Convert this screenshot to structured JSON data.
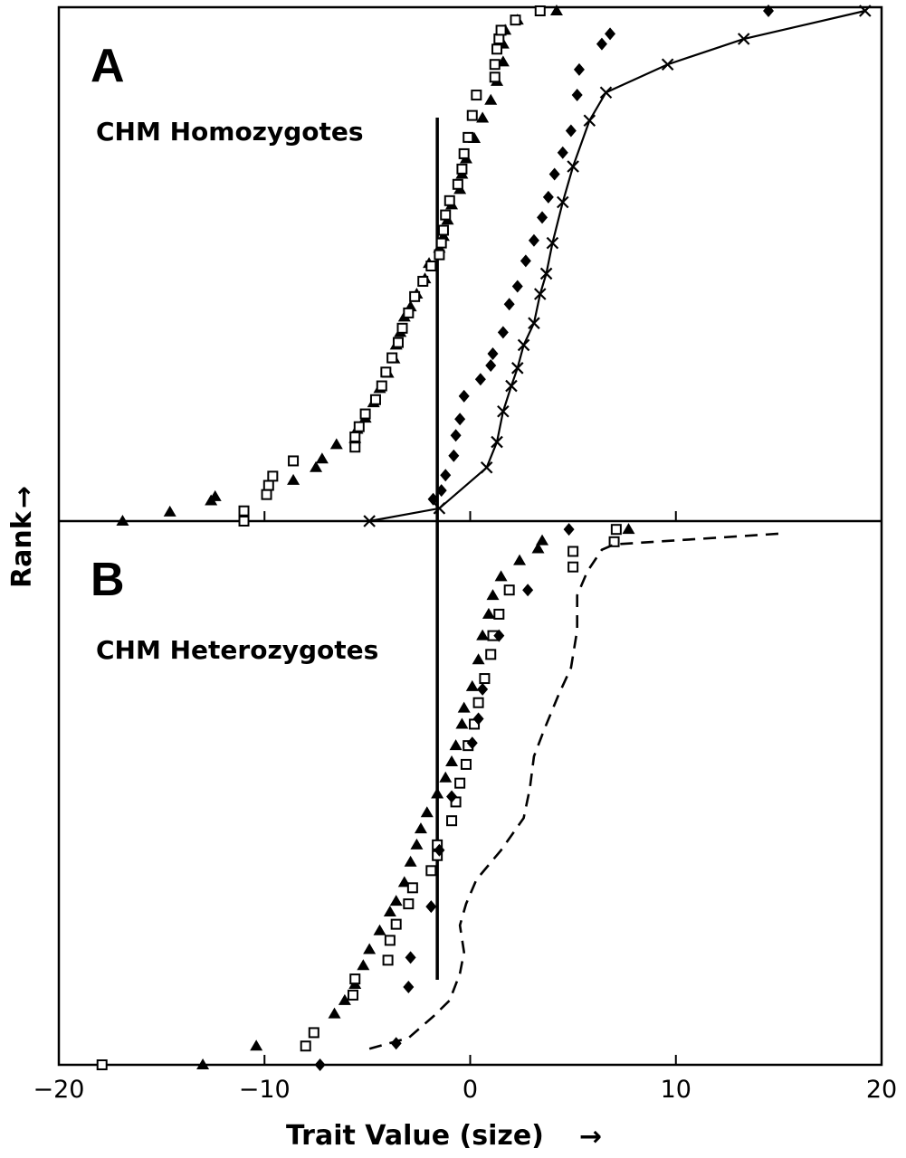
{
  "chart_data": {
    "type": "scatter",
    "xlabel": "Trait Value (size)",
    "ylabel": "Rank",
    "xlim": [
      -20,
      20
    ],
    "xticks": [
      "−20",
      "−10",
      "0",
      "10",
      "20"
    ],
    "xtick_values": [
      -20,
      -10,
      0,
      10,
      20
    ],
    "arrow_glyphs": {
      "x": "→",
      "y": "→"
    },
    "vertical_line_x": -1.6,
    "panels": [
      {
        "letter": "A",
        "title": "CHM Homozygotes",
        "series": [
          {
            "marker": "triangle",
            "points": [
              [
                -16.9,
                0.0
              ],
              [
                -14.6,
                0.018
              ],
              [
                -12.6,
                0.04
              ],
              [
                -12.4,
                0.048
              ],
              [
                -8.6,
                0.08
              ],
              [
                -7.5,
                0.105
              ],
              [
                -7.2,
                0.122
              ],
              [
                -6.5,
                0.15
              ],
              [
                -5.6,
                0.162
              ],
              [
                -5.5,
                0.18
              ],
              [
                -5.1,
                0.202
              ],
              [
                -4.7,
                0.232
              ],
              [
                -4.4,
                0.26
              ],
              [
                -4.0,
                0.29
              ],
              [
                -3.7,
                0.318
              ],
              [
                -3.6,
                0.345
              ],
              [
                -3.4,
                0.37
              ],
              [
                -3.2,
                0.4
              ],
              [
                -2.9,
                0.42
              ],
              [
                -2.6,
                0.445
              ],
              [
                -2.2,
                0.475
              ],
              [
                -2.0,
                0.505
              ],
              [
                -1.5,
                0.535
              ],
              [
                -1.3,
                0.558
              ],
              [
                -1.1,
                0.59
              ],
              [
                -0.9,
                0.62
              ],
              [
                -0.5,
                0.65
              ],
              [
                -0.4,
                0.68
              ],
              [
                -0.2,
                0.71
              ],
              [
                0.2,
                0.75
              ],
              [
                0.6,
                0.79
              ],
              [
                1.0,
                0.825
              ],
              [
                1.3,
                0.862
              ],
              [
                1.6,
                0.9
              ],
              [
                1.6,
                0.935
              ],
              [
                1.7,
                0.962
              ],
              [
                2.3,
                0.982
              ],
              [
                4.2,
                1.0
              ]
            ]
          },
          {
            "marker": "open-square",
            "points": [
              [
                -11.0,
                0.0
              ],
              [
                -11.0,
                0.02
              ],
              [
                -9.9,
                0.052
              ],
              [
                -9.8,
                0.07
              ],
              [
                -9.6,
                0.088
              ],
              [
                -8.6,
                0.118
              ],
              [
                -5.6,
                0.145
              ],
              [
                -5.6,
                0.165
              ],
              [
                -5.4,
                0.185
              ],
              [
                -5.1,
                0.21
              ],
              [
                -4.6,
                0.238
              ],
              [
                -4.3,
                0.265
              ],
              [
                -4.1,
                0.292
              ],
              [
                -3.8,
                0.32
              ],
              [
                -3.5,
                0.35
              ],
              [
                -3.3,
                0.378
              ],
              [
                -3.0,
                0.408
              ],
              [
                -2.7,
                0.44
              ],
              [
                -2.3,
                0.47
              ],
              [
                -1.9,
                0.5
              ],
              [
                -1.5,
                0.522
              ],
              [
                -1.4,
                0.545
              ],
              [
                -1.3,
                0.57
              ],
              [
                -1.2,
                0.6
              ],
              [
                -1.0,
                0.628
              ],
              [
                -0.6,
                0.66
              ],
              [
                -0.4,
                0.69
              ],
              [
                -0.3,
                0.72
              ],
              [
                -0.1,
                0.752
              ],
              [
                0.1,
                0.795
              ],
              [
                0.3,
                0.835
              ],
              [
                1.2,
                0.87
              ],
              [
                1.2,
                0.895
              ],
              [
                1.3,
                0.925
              ],
              [
                1.4,
                0.945
              ],
              [
                1.5,
                0.962
              ],
              [
                2.2,
                0.982
              ],
              [
                3.4,
                1.0
              ]
            ]
          },
          {
            "marker": "diamond",
            "points": [
              [
                -1.8,
                0.043
              ],
              [
                -1.4,
                0.06
              ],
              [
                -1.2,
                0.09
              ],
              [
                -0.8,
                0.128
              ],
              [
                -0.7,
                0.168
              ],
              [
                -0.5,
                0.2
              ],
              [
                -0.3,
                0.245
              ],
              [
                0.5,
                0.278
              ],
              [
                1.0,
                0.305
              ],
              [
                1.1,
                0.328
              ],
              [
                1.6,
                0.37
              ],
              [
                1.9,
                0.425
              ],
              [
                2.3,
                0.46
              ],
              [
                2.7,
                0.51
              ],
              [
                3.1,
                0.55
              ],
              [
                3.5,
                0.595
              ],
              [
                3.8,
                0.635
              ],
              [
                4.1,
                0.68
              ],
              [
                4.5,
                0.722
              ],
              [
                4.9,
                0.765
              ],
              [
                5.2,
                0.835
              ],
              [
                5.3,
                0.885
              ],
              [
                6.4,
                0.935
              ],
              [
                6.8,
                0.955
              ],
              [
                14.5,
                1.0
              ]
            ]
          },
          {
            "marker": "x-line",
            "points": [
              [
                -4.9,
                0.0
              ],
              [
                -1.5,
                0.025
              ],
              [
                0.8,
                0.105
              ],
              [
                1.3,
                0.155
              ],
              [
                1.6,
                0.215
              ],
              [
                2.0,
                0.265
              ],
              [
                2.3,
                0.3
              ],
              [
                2.6,
                0.345
              ],
              [
                3.1,
                0.388
              ],
              [
                3.4,
                0.445
              ],
              [
                3.7,
                0.485
              ],
              [
                4.0,
                0.545
              ],
              [
                4.5,
                0.625
              ],
              [
                5.0,
                0.695
              ],
              [
                5.8,
                0.785
              ],
              [
                6.6,
                0.84
              ],
              [
                9.6,
                0.895
              ],
              [
                13.3,
                0.945
              ],
              [
                19.2,
                1.0
              ]
            ]
          }
        ]
      },
      {
        "letter": "B",
        "title": "CHM Heterozygotes",
        "series": [
          {
            "marker": "triangle",
            "points": [
              [
                -13.0,
                0.0
              ],
              [
                -10.4,
                0.035
              ],
              [
                -6.6,
                0.095
              ],
              [
                -6.1,
                0.12
              ],
              [
                -5.6,
                0.15
              ],
              [
                -5.2,
                0.185
              ],
              [
                -4.9,
                0.215
              ],
              [
                -4.4,
                0.25
              ],
              [
                -3.9,
                0.285
              ],
              [
                -3.6,
                0.305
              ],
              [
                -3.2,
                0.34
              ],
              [
                -2.9,
                0.378
              ],
              [
                -2.6,
                0.41
              ],
              [
                -2.4,
                0.44
              ],
              [
                -2.1,
                0.47
              ],
              [
                -1.6,
                0.505
              ],
              [
                -1.2,
                0.535
              ],
              [
                -0.9,
                0.565
              ],
              [
                -0.7,
                0.595
              ],
              [
                -0.4,
                0.635
              ],
              [
                -0.3,
                0.665
              ],
              [
                0.1,
                0.705
              ],
              [
                0.4,
                0.755
              ],
              [
                0.6,
                0.8
              ],
              [
                0.9,
                0.84
              ],
              [
                1.1,
                0.875
              ],
              [
                1.5,
                0.91
              ],
              [
                2.4,
                0.94
              ],
              [
                3.3,
                0.962
              ],
              [
                3.5,
                0.977
              ],
              [
                7.7,
                0.998
              ]
            ]
          },
          {
            "marker": "open-square",
            "points": [
              [
                -17.9,
                0.0
              ],
              [
                -8.0,
                0.035
              ],
              [
                -7.6,
                0.06
              ],
              [
                -5.7,
                0.13
              ],
              [
                -5.6,
                0.16
              ],
              [
                -4.0,
                0.195
              ],
              [
                -3.9,
                0.232
              ],
              [
                -3.6,
                0.262
              ],
              [
                -3.0,
                0.3
              ],
              [
                -2.8,
                0.33
              ],
              [
                -1.9,
                0.362
              ],
              [
                -1.6,
                0.39
              ],
              [
                -1.6,
                0.41
              ],
              [
                -0.9,
                0.455
              ],
              [
                -0.7,
                0.49
              ],
              [
                -0.5,
                0.525
              ],
              [
                -0.2,
                0.56
              ],
              [
                -0.1,
                0.595
              ],
              [
                0.2,
                0.635
              ],
              [
                0.4,
                0.675
              ],
              [
                0.7,
                0.72
              ],
              [
                1.0,
                0.765
              ],
              [
                1.1,
                0.8
              ],
              [
                1.4,
                0.84
              ],
              [
                1.9,
                0.885
              ],
              [
                5.0,
                0.928
              ],
              [
                5.0,
                0.957
              ],
              [
                7.0,
                0.975
              ],
              [
                7.1,
                0.998
              ]
            ]
          },
          {
            "marker": "diamond",
            "points": [
              [
                -7.3,
                0.0
              ],
              [
                -3.6,
                0.04
              ],
              [
                -3.0,
                0.145
              ],
              [
                -2.9,
                0.2
              ],
              [
                -1.9,
                0.295
              ],
              [
                -1.5,
                0.4
              ],
              [
                -0.9,
                0.5
              ],
              [
                0.1,
                0.6
              ],
              [
                0.4,
                0.645
              ],
              [
                0.6,
                0.7
              ],
              [
                1.4,
                0.8
              ],
              [
                2.8,
                0.885
              ],
              [
                4.8,
                0.998
              ]
            ]
          },
          {
            "marker": "dashed-line",
            "points": [
              [
                -4.9,
                0.03
              ],
              [
                -3.0,
                0.05
              ],
              [
                -1.8,
                0.09
              ],
              [
                -1.0,
                0.12
              ],
              [
                -0.5,
                0.17
              ],
              [
                -0.3,
                0.21
              ],
              [
                -0.5,
                0.26
              ],
              [
                -0.2,
                0.3
              ],
              [
                0.3,
                0.345
              ],
              [
                1.5,
                0.4
              ],
              [
                2.6,
                0.46
              ],
              [
                2.9,
                0.515
              ],
              [
                3.1,
                0.575
              ],
              [
                3.6,
                0.625
              ],
              [
                4.3,
                0.69
              ],
              [
                4.9,
                0.74
              ],
              [
                5.2,
                0.81
              ],
              [
                5.2,
                0.875
              ],
              [
                5.7,
                0.92
              ],
              [
                6.4,
                0.96
              ],
              [
                7.0,
                0.97
              ],
              [
                15.0,
                0.99
              ]
            ]
          }
        ]
      }
    ]
  }
}
